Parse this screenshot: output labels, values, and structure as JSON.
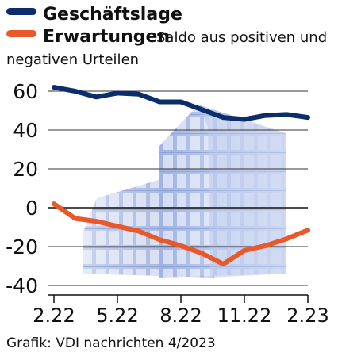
{
  "legend": {
    "series1": {
      "name": "Geschäftslage",
      "color": "#0b2d6b"
    },
    "series2": {
      "name": "Erwartungen",
      "color": "#e8582a"
    },
    "note_line1": "Saldo aus positiven und",
    "note_line2": "negativen Urteilen"
  },
  "credit": "Grafik: VDI nachrichten 4/2023",
  "chart_data": {
    "type": "line",
    "x": [
      "2.22",
      "3.22",
      "4.22",
      "5.22",
      "6.22",
      "7.22",
      "8.22",
      "9.22",
      "10.22",
      "11.22",
      "12.22",
      "1.23",
      "2.23"
    ],
    "xticks": [
      "2.22",
      "5.22",
      "8.22",
      "11.22",
      "2.23"
    ],
    "yticks": [
      60,
      40,
      20,
      0,
      -20,
      -40
    ],
    "ylim": [
      -40,
      60
    ],
    "zero_line": true,
    "grid": true,
    "series": [
      {
        "name": "Geschäftslage",
        "color": "#0b2d6b",
        "values": [
          62,
          60,
          57,
          59,
          58.5,
          54.5,
          54.5,
          50.5,
          46.5,
          45.5,
          47.5,
          48,
          46.5
        ]
      },
      {
        "name": "Erwartungen",
        "color": "#e8582a",
        "values": [
          2,
          -5.5,
          -7,
          -9.5,
          -12,
          -16.5,
          -19.5,
          -23.5,
          -29,
          -22,
          -19.5,
          -16,
          -11.5
        ]
      }
    ]
  }
}
